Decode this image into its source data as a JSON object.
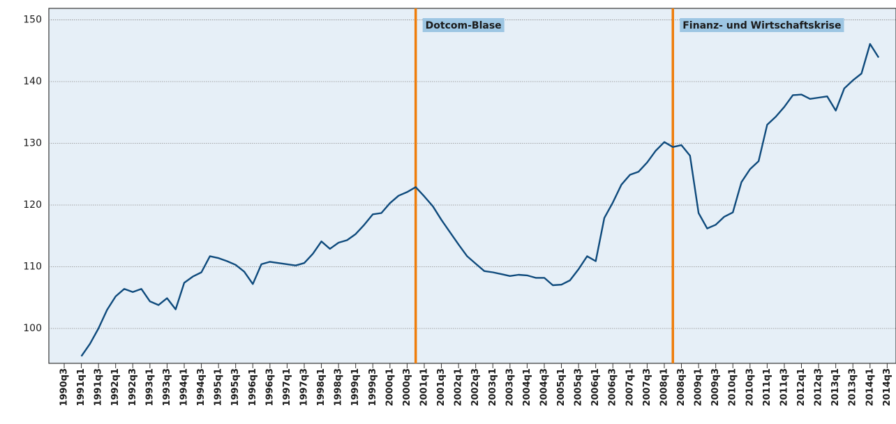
{
  "chart_data": {
    "type": "line",
    "categories": [
      "1990q3",
      null,
      "1991q1",
      null,
      "1991q3",
      null,
      "1992q1",
      null,
      "1992q3",
      null,
      "1993q1",
      null,
      "1993q3",
      null,
      "1994q1",
      null,
      "1994q3",
      null,
      "1995q1",
      null,
      "1995q3",
      null,
      "1996q1",
      null,
      "1996q3",
      null,
      "1997q1",
      null,
      "1997q3",
      null,
      "1998q1",
      null,
      "1998q3",
      null,
      "1999q1",
      null,
      "1999q3",
      null,
      "2000q1",
      null,
      "2000q3",
      null,
      "2001q1",
      null,
      "2001q3",
      null,
      "2002q1",
      null,
      "2002q3",
      null,
      "2003q1",
      null,
      "2003q3",
      null,
      "2004q1",
      null,
      "2004q3",
      null,
      "2005q1",
      null,
      "2005q3",
      null,
      "2006q1",
      null,
      "2006q3",
      null,
      "2007q1",
      null,
      "2007q3",
      null,
      "2008q1",
      null,
      "2008q3",
      null,
      "2009q1",
      null,
      "2009q3",
      null,
      "2010q1",
      null,
      "2010q3",
      null,
      "2011q1",
      null,
      "2011q3",
      null,
      "2012q1",
      null,
      "2012q3",
      null,
      "2013q1",
      null,
      "2013q3",
      null,
      "2014q1",
      null,
      "2014q3"
    ],
    "values": [
      null,
      null,
      95.5,
      97.5,
      100,
      103,
      105.2,
      106.4,
      105.9,
      106.4,
      104.4,
      103.8,
      104.9,
      103.1,
      107.4,
      108.4,
      109.1,
      111.7,
      111.4,
      110.9,
      110.3,
      109.2,
      107.2,
      110.4,
      110.8,
      110.6,
      110.4,
      110.2,
      110.6,
      112.1,
      114.1,
      112.9,
      113.9,
      114.3,
      115.3,
      116.8,
      118.5,
      118.7,
      120.3,
      121.5,
      122.1,
      122.9,
      121.4,
      119.8,
      117.6,
      115.6,
      113.6,
      111.7,
      110.5,
      109.3,
      109.1,
      108.8,
      108.5,
      108.7,
      108.6,
      108.2,
      108.2,
      107.0,
      107.1,
      107.8,
      109.6,
      111.7,
      110.9,
      117.9,
      120.4,
      123.3,
      124.9,
      125.4,
      126.9,
      128.8,
      130.2,
      129.4,
      129.7,
      128.0,
      118.7,
      116.2,
      116.8,
      118.1,
      118.8,
      123.7,
      125.8,
      127.1,
      133.0,
      134.3,
      135.9,
      137.8,
      137.9,
      137.2,
      137.4,
      137.6,
      135.3,
      138.9,
      140.2,
      141.3,
      146.1,
      143.9,
      null
    ],
    "color": "#0e4a7c",
    "ylim": [
      94.35,
      151.86
    ],
    "yticks": [
      100,
      110,
      120,
      130,
      140,
      150
    ],
    "grid": true,
    "annotations": [
      {
        "text": "Dotcom-Blase",
        "category_index": 41,
        "color": "#ef7d0b"
      },
      {
        "text": "Finanz- und Wirtschaftskrise",
        "category_index": 71,
        "color": "#ef7d0b"
      }
    ]
  }
}
